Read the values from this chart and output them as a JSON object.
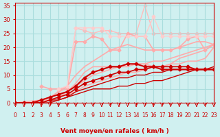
{
  "bg_color": "#d0f0f0",
  "grid_color": "#aadddd",
  "xlabel": "Vent moyen/en rafales ( km/h )",
  "xlabel_color": "#cc0000",
  "tick_color": "#cc0000",
  "xlim": [
    0,
    23
  ],
  "ylim": [
    0,
    36
  ],
  "yticks": [
    0,
    5,
    10,
    15,
    20,
    25,
    30,
    35
  ],
  "xticks": [
    0,
    1,
    2,
    3,
    4,
    5,
    6,
    7,
    8,
    9,
    10,
    11,
    12,
    13,
    14,
    15,
    16,
    17,
    18,
    19,
    20,
    21,
    22,
    23
  ],
  "lines": [
    {
      "x": [
        0,
        1,
        2,
        3,
        4,
        5,
        6,
        7,
        8,
        9,
        10,
        11,
        12,
        13,
        14,
        15,
        16,
        17,
        18,
        19,
        20,
        21,
        22,
        23
      ],
      "y": [
        0,
        0,
        0,
        0,
        1,
        1,
        2,
        4,
        5,
        6,
        7,
        8,
        9,
        9,
        10,
        10,
        11,
        11,
        12,
        12,
        12,
        12,
        12,
        12
      ],
      "color": "#cc0000",
      "lw": 1.0,
      "marker": null,
      "zorder": 3
    },
    {
      "x": [
        0,
        1,
        2,
        3,
        4,
        5,
        6,
        7,
        8,
        9,
        10,
        11,
        12,
        13,
        14,
        15,
        16,
        17,
        18,
        19,
        20,
        21,
        22,
        23
      ],
      "y": [
        0,
        0,
        0,
        0,
        1,
        2,
        3,
        5,
        7,
        8,
        9,
        10,
        11,
        11,
        12,
        12,
        13,
        13,
        13,
        13,
        13,
        12,
        12,
        12
      ],
      "color": "#cc0000",
      "lw": 1.2,
      "marker": "D",
      "markersize": 2.5,
      "zorder": 4
    },
    {
      "x": [
        0,
        1,
        2,
        3,
        4,
        5,
        6,
        7,
        8,
        9,
        10,
        11,
        12,
        13,
        14,
        15,
        16,
        17,
        18,
        19,
        20,
        21,
        22,
        23
      ],
      "y": [
        0,
        0,
        0,
        1,
        2,
        3,
        4,
        6,
        9,
        11,
        12,
        13,
        13,
        14,
        14,
        13,
        13,
        12,
        12,
        12,
        12,
        12,
        12,
        12
      ],
      "color": "#cc0000",
      "lw": 1.5,
      "marker": "D",
      "markersize": 2.5,
      "zorder": 5
    },
    {
      "x": [
        0,
        1,
        2,
        3,
        4,
        5,
        6,
        7,
        8,
        9,
        10,
        11,
        12,
        13,
        14,
        15,
        16,
        17,
        18,
        19,
        20,
        21,
        22,
        23
      ],
      "y": [
        0,
        0,
        0,
        0,
        0,
        1,
        2,
        3,
        4,
        5,
        5,
        5,
        6,
        6,
        7,
        7,
        8,
        8,
        9,
        10,
        11,
        12,
        12,
        13
      ],
      "color": "#cc0000",
      "lw": 1.0,
      "marker": null,
      "zorder": 3
    },
    {
      "x": [
        0,
        2,
        3,
        4,
        5,
        6,
        7,
        8,
        9,
        10,
        11,
        12,
        13,
        14,
        15,
        16,
        17,
        18,
        19,
        20,
        21,
        22,
        23
      ],
      "y": [
        0,
        0,
        1,
        1,
        2,
        3,
        4,
        6,
        7,
        8,
        9,
        10,
        11,
        11,
        12,
        13,
        13,
        14,
        16,
        17,
        18,
        19,
        21
      ],
      "color": "#ffaaaa",
      "lw": 1.2,
      "marker": null,
      "zorder": 2
    },
    {
      "x": [
        0,
        2,
        3,
        4,
        5,
        6,
        7,
        8,
        9,
        10,
        11,
        12,
        13,
        14,
        15,
        16,
        17,
        18,
        19,
        20,
        21,
        22,
        23
      ],
      "y": [
        0,
        0,
        1,
        2,
        3,
        4,
        6,
        8,
        10,
        11,
        12,
        13,
        13,
        14,
        14,
        15,
        15,
        16,
        17,
        18,
        19,
        20,
        21
      ],
      "color": "#ffaaaa",
      "lw": 1.2,
      "marker": null,
      "zorder": 2
    },
    {
      "x": [
        0,
        3,
        4,
        5,
        6,
        7,
        8,
        9,
        10,
        11,
        12,
        13,
        14,
        15,
        16,
        17,
        18,
        19,
        20,
        21,
        22,
        23
      ],
      "y": [
        0,
        0,
        1,
        2,
        4,
        7,
        11,
        13,
        13,
        13,
        13,
        14,
        14,
        14,
        13,
        13,
        14,
        14,
        15,
        15,
        16,
        20
      ],
      "color": "#ffaaaa",
      "lw": 1.2,
      "marker": null,
      "zorder": 2
    },
    {
      "x": [
        0,
        3,
        4,
        5,
        6,
        7,
        8,
        9,
        10,
        11,
        12,
        13,
        14,
        15,
        16,
        17,
        18,
        19,
        20,
        21,
        22,
        23
      ],
      "y": [
        0,
        1,
        2,
        4,
        6,
        10,
        13,
        15,
        17,
        19,
        20,
        21,
        20,
        19,
        19,
        19,
        19,
        20,
        21,
        22,
        22,
        21
      ],
      "color": "#ffaaaa",
      "lw": 1.2,
      "marker": null,
      "zorder": 2
    },
    {
      "x": [
        3,
        4,
        5,
        6,
        7,
        8,
        9,
        10,
        11,
        12,
        13,
        14,
        15,
        16,
        17,
        18,
        19,
        20,
        21,
        22,
        23
      ],
      "y": [
        6,
        5,
        5,
        5,
        22,
        22,
        24,
        23,
        19,
        19,
        25,
        24,
        24,
        19,
        19,
        19,
        20,
        23,
        24,
        19,
        21
      ],
      "color": "#ffaaaa",
      "lw": 1.2,
      "marker": "D",
      "markersize": 2.5,
      "zorder": 2
    },
    {
      "x": [
        5,
        6,
        7,
        8,
        9,
        10,
        11,
        12,
        13,
        14,
        15,
        16,
        17,
        18,
        19,
        20,
        21,
        22,
        23
      ],
      "y": [
        5,
        6,
        27,
        27,
        27,
        27,
        24,
        24,
        24,
        24,
        24,
        31,
        24,
        24,
        24,
        24,
        24,
        24,
        24
      ],
      "color": "#ffcccc",
      "lw": 1.0,
      "marker": "D",
      "markersize": 2.5,
      "zorder": 2
    },
    {
      "x": [
        5,
        6,
        7,
        8,
        9,
        10,
        11,
        12,
        13,
        14,
        15,
        16,
        17,
        18,
        19,
        20,
        21,
        22,
        23
      ],
      "y": [
        4,
        5,
        27,
        26,
        25,
        26,
        26,
        25,
        25,
        25,
        35,
        25,
        25,
        25,
        25,
        25,
        25,
        25,
        25
      ],
      "color": "#ffbbbb",
      "lw": 1.0,
      "marker": "D",
      "markersize": 2.5,
      "zorder": 1
    }
  ],
  "arrow_color": "#cc0000"
}
